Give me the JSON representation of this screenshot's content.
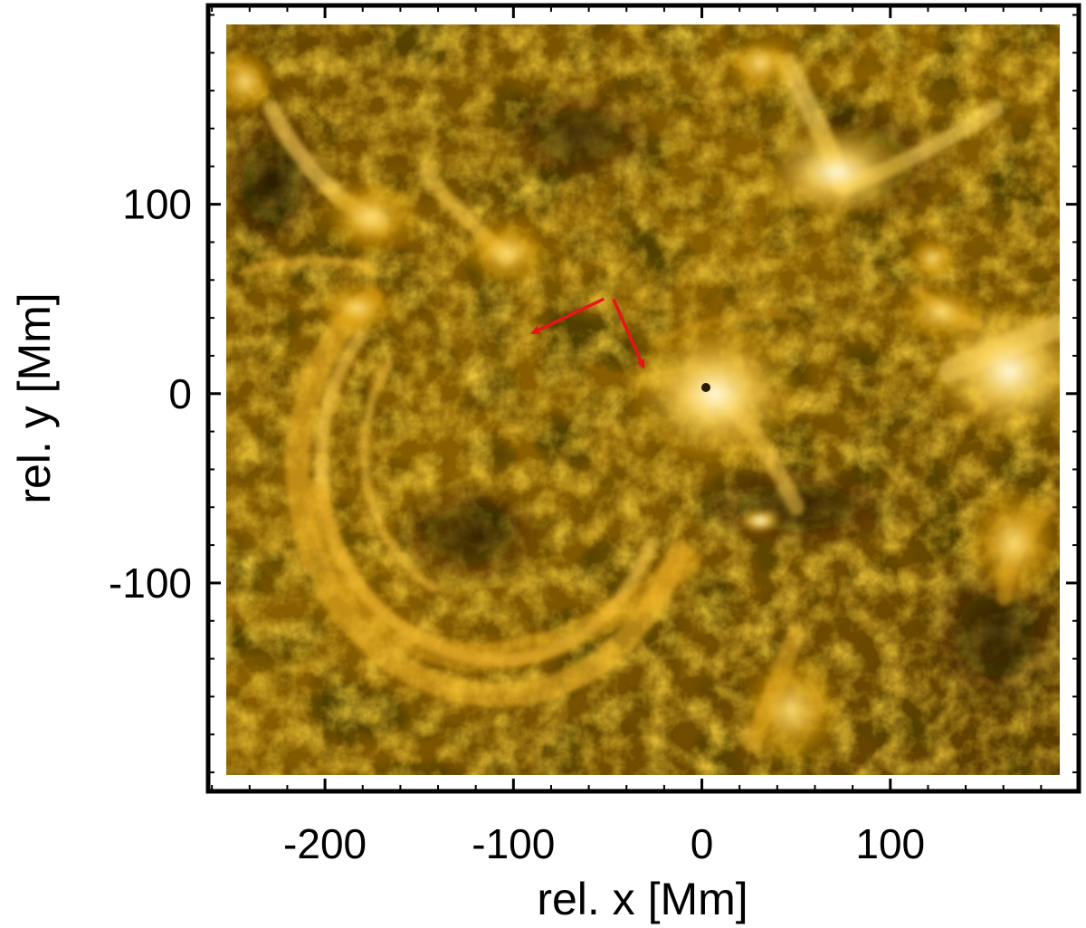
{
  "figure": {
    "xlabel": "rel. x [Mm]",
    "ylabel": "rel. y [Mm]",
    "xlim": [
      -262,
      200
    ],
    "ylim": [
      -210,
      205
    ],
    "x_ticks": [
      {
        "value": -200,
        "label": "-200"
      },
      {
        "value": -100,
        "label": "-100"
      },
      {
        "value": 0,
        "label": "0"
      },
      {
        "value": 100,
        "label": "100"
      }
    ],
    "y_ticks": [
      {
        "value": 100,
        "label": "100"
      },
      {
        "value": 0,
        "label": "0"
      },
      {
        "value": -100,
        "label": "-100"
      }
    ],
    "image_extent": {
      "x": [
        -252,
        186
      ],
      "y": [
        -200,
        196
      ]
    },
    "colormap": "gold (SDO/AIA 171-style)",
    "annotation_color": "#e8141a",
    "arrows": [
      {
        "name": "arrow-left",
        "from": [
          -52,
          50
        ],
        "to": [
          -90,
          32
        ]
      },
      {
        "name": "arrow-down",
        "from": [
          -47,
          50
        ],
        "to": [
          -31,
          14
        ]
      }
    ]
  }
}
